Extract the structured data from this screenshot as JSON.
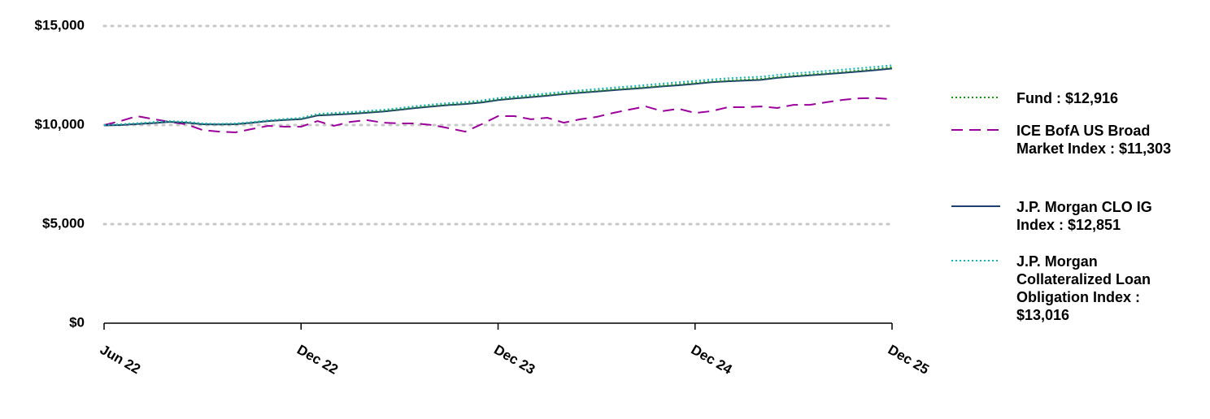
{
  "chart_data": {
    "type": "line",
    "categories": [
      "Jun 22",
      null,
      null,
      null,
      null,
      null,
      null,
      null,
      null,
      null,
      null,
      null,
      "Dec 22",
      null,
      null,
      null,
      null,
      null,
      null,
      null,
      null,
      null,
      null,
      null,
      "Dec 23",
      null,
      null,
      null,
      null,
      null,
      null,
      null,
      null,
      null,
      null,
      null,
      "Dec 24",
      null,
      null,
      null,
      null,
      null,
      null,
      null,
      null,
      null,
      null,
      null,
      "Dec 25"
    ],
    "series": [
      {
        "name": "Fund : $12,916",
        "color": "#1a9c1a",
        "style": "dotted",
        "values": [
          10000,
          10030,
          10080,
          10130,
          10180,
          10150,
          10070,
          10050,
          10060,
          10130,
          10220,
          10280,
          10330,
          10520,
          10570,
          10610,
          10660,
          10720,
          10800,
          10900,
          10980,
          11050,
          11100,
          11180,
          11300,
          11380,
          11450,
          11520,
          11600,
          11670,
          11730,
          11800,
          11860,
          11920,
          11990,
          12060,
          12130,
          12200,
          12250,
          12290,
          12330,
          12420,
          12500,
          12560,
          12620,
          12690,
          12760,
          12830,
          12916
        ]
      },
      {
        "name": "ICE BofA US Broad Market Index : $11,303",
        "color": "#9b009b",
        "style": "dashed",
        "values": [
          10000,
          10200,
          10450,
          10300,
          10160,
          10040,
          9750,
          9670,
          9630,
          9800,
          9960,
          9920,
          9920,
          10200,
          9960,
          10160,
          10250,
          10120,
          10080,
          10080,
          10000,
          9840,
          9670,
          10040,
          10450,
          10450,
          10290,
          10370,
          10120,
          10290,
          10410,
          10610,
          10780,
          10940,
          10700,
          10820,
          10610,
          10700,
          10900,
          10900,
          10940,
          10860,
          11020,
          11020,
          11150,
          11270,
          11350,
          11360,
          11303
        ]
      },
      {
        "name": "J.P. Morgan CLO IG Index : $12,851",
        "color": "#1f3f6e",
        "style": "solid",
        "values": [
          9980,
          10000,
          10050,
          10100,
          10160,
          10120,
          10040,
          10030,
          10040,
          10110,
          10200,
          10260,
          10300,
          10480,
          10520,
          10560,
          10620,
          10680,
          10770,
          10860,
          10940,
          11010,
          11060,
          11140,
          11260,
          11340,
          11410,
          11480,
          11560,
          11630,
          11690,
          11760,
          11820,
          11880,
          11950,
          12010,
          12080,
          12160,
          12210,
          12240,
          12280,
          12380,
          12450,
          12510,
          12570,
          12630,
          12700,
          12770,
          12851
        ]
      },
      {
        "name": "J.P. Morgan Collateralized Loan Obligation Index : $13,016",
        "color": "#14b4b4",
        "style": "dotted",
        "values": [
          10000,
          10040,
          10090,
          10150,
          10200,
          10170,
          10080,
          10060,
          10080,
          10150,
          10240,
          10310,
          10360,
          10560,
          10610,
          10660,
          10710,
          10770,
          10860,
          10960,
          11040,
          11110,
          11160,
          11240,
          11360,
          11440,
          11520,
          11600,
          11680,
          11750,
          11820,
          11890,
          11950,
          12020,
          12090,
          12160,
          12230,
          12300,
          12360,
          12400,
          12440,
          12530,
          12610,
          12670,
          12730,
          12800,
          12870,
          12940,
          13016
        ]
      }
    ],
    "ylim": [
      0,
      15000
    ],
    "yticks": [
      {
        "value": 0,
        "label": "$0"
      },
      {
        "value": 5000,
        "label": "$5,000"
      },
      {
        "value": 10000,
        "label": "$10,000"
      },
      {
        "value": 15000,
        "label": "$15,000"
      }
    ],
    "grid": true
  }
}
